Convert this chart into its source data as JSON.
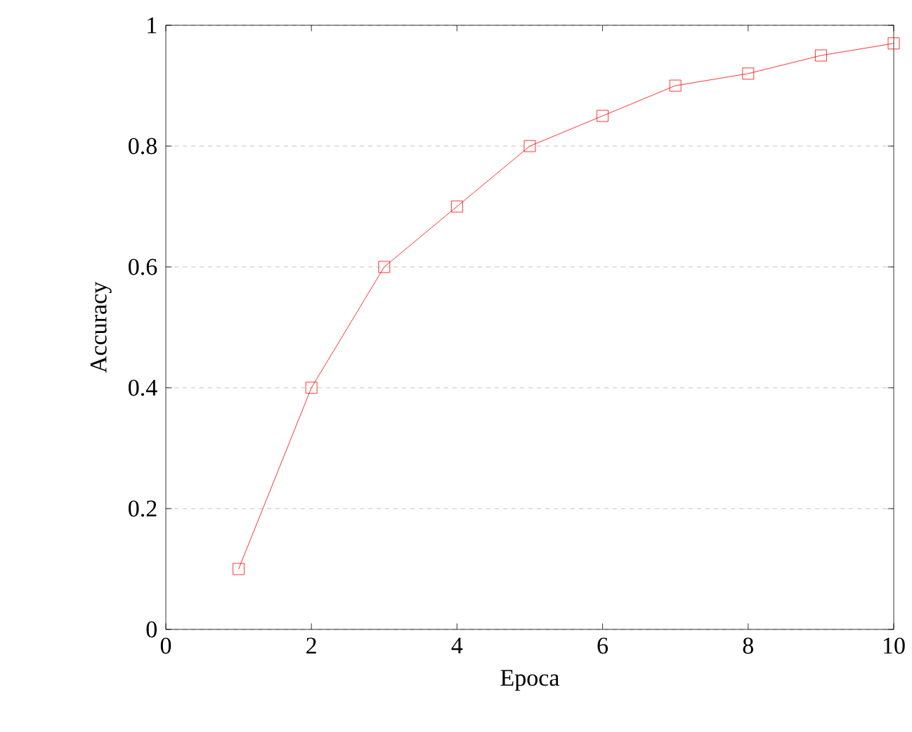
{
  "chart_data": {
    "type": "line",
    "xlabel": "Epoca",
    "ylabel": "Accuracy",
    "x": [
      1,
      2,
      3,
      4,
      5,
      6,
      7,
      8,
      9,
      10
    ],
    "series": [
      {
        "color": "#ff0000",
        "values": [
          0.1,
          0.4,
          0.6,
          0.7,
          0.8,
          0.85,
          0.9,
          0.92,
          0.95,
          0.97
        ]
      }
    ],
    "xlim": [
      0,
      10
    ],
    "ylim": [
      0,
      1
    ],
    "xticks": [
      0,
      2,
      4,
      6,
      8,
      10
    ],
    "yticks": [
      0,
      0.2,
      0.4,
      0.6,
      0.8,
      1
    ],
    "grid": "y",
    "marker": "square",
    "line_style": "solid"
  }
}
